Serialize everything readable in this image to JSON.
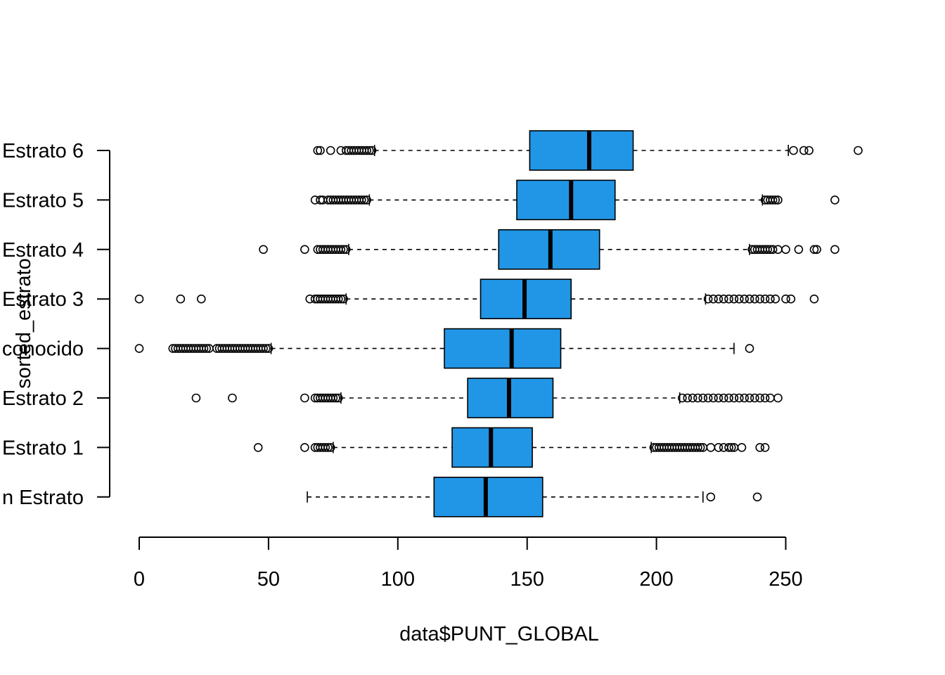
{
  "chart_data": {
    "type": "boxplot",
    "orientation": "horizontal",
    "title": "",
    "xlabel": "data$PUNT_GLOBAL",
    "ylabel": "sorted_estrato",
    "xlim": [
      0,
      280
    ],
    "xticks": [
      0,
      50,
      100,
      150,
      200,
      250
    ],
    "box_color": "#2196E6",
    "grid": false,
    "legend": "none",
    "categories": [
      "Sin Estrato",
      "Estrato 1",
      "Estrato 2",
      "Desconocido",
      "Estrato 3",
      "Estrato 4",
      "Estrato 5",
      "Estrato 6"
    ],
    "boxes": [
      {
        "name": "Sin Estrato",
        "whisker_low": 65,
        "q1": 114,
        "median": 134,
        "q3": 156,
        "whisker_high": 218,
        "outliers": [
          221,
          239
        ]
      },
      {
        "name": "Estrato 1",
        "whisker_low": 75,
        "q1": 121,
        "median": 136,
        "q3": 152,
        "whisker_high": 198,
        "outliers": [
          46,
          64,
          68,
          69,
          70,
          71,
          72,
          73,
          74,
          199,
          200,
          201,
          202,
          203,
          204,
          205,
          206,
          207,
          208,
          209,
          210,
          211,
          212,
          213,
          214,
          215,
          216,
          217,
          218,
          221,
          224,
          226,
          228,
          229,
          230,
          233,
          240,
          242
        ]
      },
      {
        "name": "Estrato 2",
        "whisker_low": 78,
        "q1": 127,
        "median": 143,
        "q3": 160,
        "whisker_high": 209,
        "outliers": [
          22,
          36,
          64,
          68,
          69,
          70,
          71,
          72,
          73,
          74,
          75,
          76,
          77,
          210,
          212,
          214,
          216,
          218,
          220,
          222,
          224,
          226,
          228,
          230,
          232,
          234,
          236,
          238,
          240,
          242,
          244,
          247
        ]
      },
      {
        "name": "Desconocido",
        "whisker_low": 51,
        "q1": 118,
        "median": 144,
        "q3": 163,
        "whisker_high": 230,
        "outliers": [
          0,
          13,
          14,
          15,
          16,
          17,
          18,
          19,
          20,
          21,
          22,
          23,
          24,
          25,
          26,
          27,
          30,
          31,
          32,
          33,
          34,
          35,
          36,
          37,
          38,
          39,
          40,
          41,
          42,
          43,
          44,
          45,
          46,
          47,
          48,
          49,
          50,
          236
        ]
      },
      {
        "name": "Estrato 3",
        "whisker_low": 80,
        "q1": 132,
        "median": 149,
        "q3": 167,
        "whisker_high": 219,
        "outliers": [
          0,
          16,
          24,
          66,
          68,
          69,
          70,
          71,
          72,
          73,
          74,
          75,
          76,
          77,
          78,
          79,
          220,
          222,
          224,
          226,
          228,
          230,
          232,
          234,
          236,
          238,
          240,
          242,
          244,
          246,
          250,
          252,
          261
        ]
      },
      {
        "name": "Estrato 4",
        "whisker_low": 81,
        "q1": 139,
        "median": 159,
        "q3": 178,
        "whisker_high": 236,
        "outliers": [
          48,
          64,
          69,
          70,
          71,
          72,
          73,
          74,
          75,
          76,
          77,
          78,
          79,
          80,
          237,
          238,
          239,
          240,
          241,
          242,
          243,
          244,
          245,
          247,
          250,
          255,
          261,
          262,
          269
        ]
      },
      {
        "name": "Estrato 5",
        "whisker_low": 89,
        "q1": 146,
        "median": 167,
        "q3": 184,
        "whisker_high": 241,
        "outliers": [
          68,
          70,
          71,
          73,
          74,
          75,
          76,
          77,
          78,
          79,
          80,
          81,
          82,
          83,
          84,
          85,
          86,
          87,
          88,
          242,
          243,
          244,
          245,
          246,
          247,
          269
        ]
      },
      {
        "name": "Estrato 6",
        "whisker_low": 91,
        "q1": 151,
        "median": 174,
        "q3": 191,
        "whisker_high": 251,
        "outliers": [
          69,
          70,
          74,
          78,
          80,
          81,
          82,
          83,
          84,
          85,
          86,
          87,
          88,
          89,
          90,
          253,
          257,
          259,
          278
        ]
      }
    ],
    "category_tick_labels": [
      "n Estrato",
      "Estrato 1",
      "Estrato 2",
      "conocido",
      "Estrato 3",
      "Estrato 4",
      "Estrato 5",
      "Estrato 6"
    ]
  }
}
